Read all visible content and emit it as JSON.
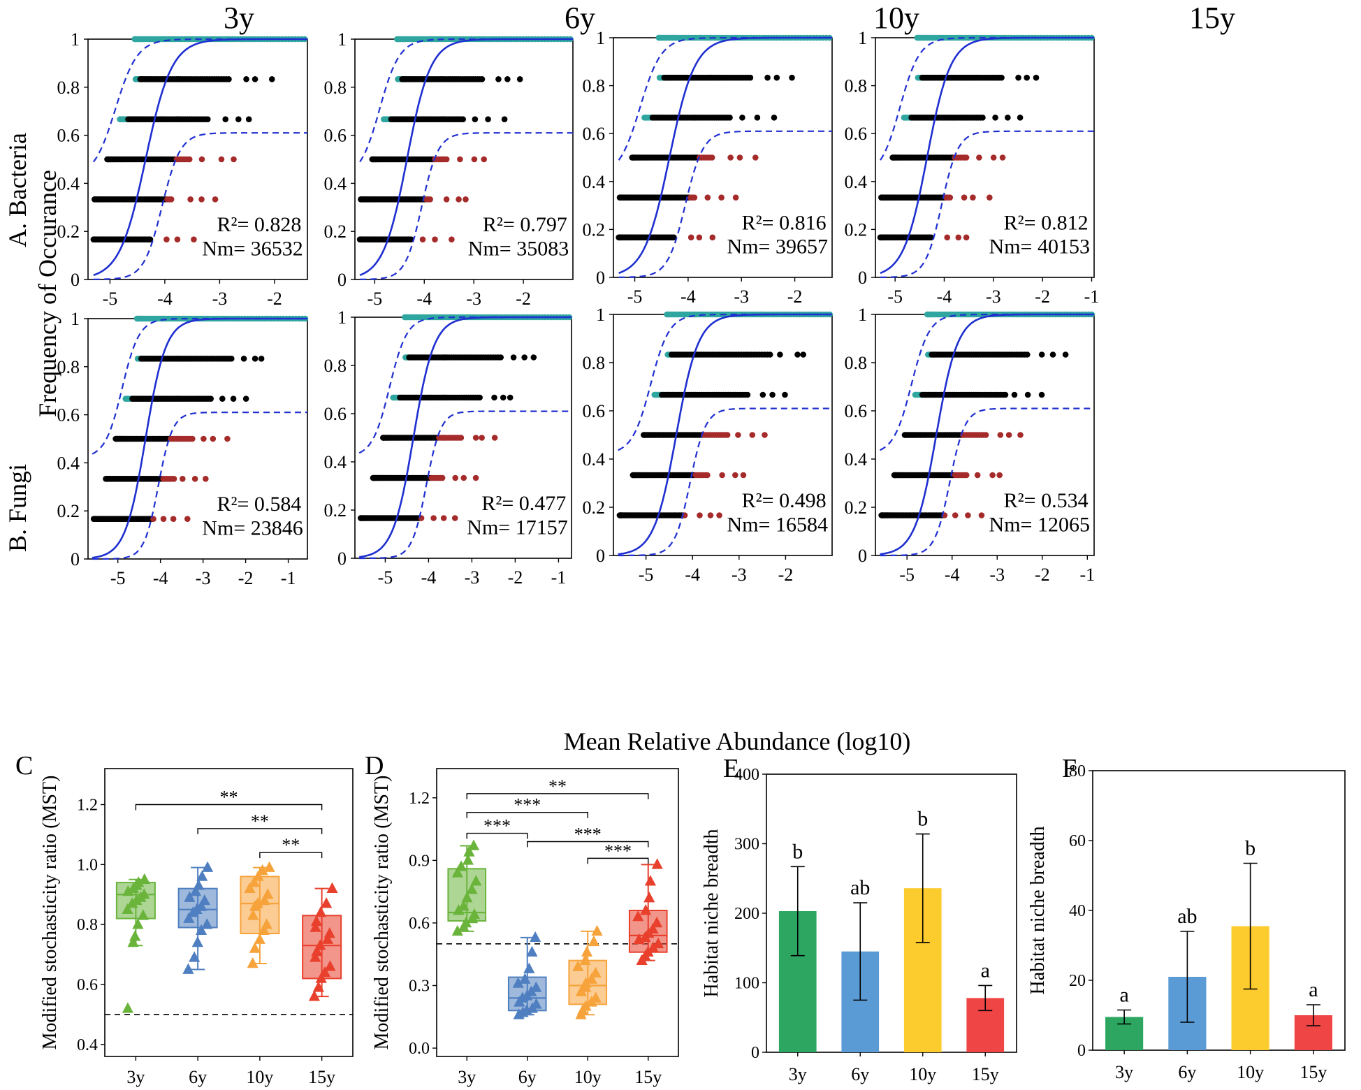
{
  "figure": {
    "col_titles": [
      "3y",
      "6y",
      "10y",
      "15y"
    ],
    "row_labels": [
      "A. Bacteria",
      "B. Fungi"
    ],
    "y_label": "Frequency of Occurance",
    "x_label": "Mean Relative Abundance (log10)"
  },
  "chart_data": [
    {
      "type": "scatter",
      "panel": "A-3y",
      "title": "3y",
      "r2_label": "R²= 0.828",
      "nm_label": "Nm= 36532",
      "r2": 0.828,
      "nm": 36532,
      "xlim": [
        -5.4,
        -1.4
      ],
      "xticks": [
        -5,
        -4,
        -3,
        -2
      ],
      "ylim": [
        0,
        1
      ],
      "yticks": [
        0,
        0.2,
        0.4,
        0.6,
        0.8,
        1
      ]
    },
    {
      "type": "scatter",
      "panel": "A-6y",
      "title": "6y",
      "r2_label": "R²= 0.797",
      "nm_label": "Nm= 35083",
      "r2": 0.797,
      "nm": 35083,
      "xlim": [
        -5.4,
        -1.0
      ],
      "xticks": [
        -5,
        -4,
        -3,
        -2
      ],
      "ylim": [
        0,
        1
      ],
      "yticks": [
        0,
        0.2,
        0.4,
        0.6,
        0.8,
        1
      ]
    },
    {
      "type": "scatter",
      "panel": "A-10y",
      "title": "10y",
      "r2_label": "R²= 0.816",
      "nm_label": "Nm= 39657",
      "r2": 0.816,
      "nm": 39657,
      "xlim": [
        -5.4,
        -1.3
      ],
      "xticks": [
        -5,
        -4,
        -3,
        -2
      ],
      "ylim": [
        0,
        1
      ],
      "yticks": [
        0,
        0.2,
        0.4,
        0.6,
        0.8,
        1
      ]
    },
    {
      "type": "scatter",
      "panel": "A-15y",
      "title": "15y",
      "r2_label": "R²= 0.812",
      "nm_label": "Nm= 40153",
      "r2": 0.812,
      "nm": 40153,
      "xlim": [
        -5.4,
        -0.95
      ],
      "xticks": [
        -5,
        -4,
        -3,
        -2,
        -1
      ],
      "ylim": [
        0,
        1
      ],
      "yticks": [
        0,
        0.2,
        0.4,
        0.6,
        0.8,
        1
      ]
    },
    {
      "type": "scatter",
      "panel": "B-3y",
      "title": "3y",
      "r2_label": "R²= 0.584",
      "nm_label": "Nm= 23846",
      "r2": 0.584,
      "nm": 23846,
      "xlim": [
        -5.7,
        -0.55
      ],
      "xticks": [
        -5,
        -4,
        -3,
        -2,
        -1
      ],
      "ylim": [
        0,
        1
      ],
      "yticks": [
        0,
        0.2,
        0.4,
        0.6,
        0.8,
        1
      ]
    },
    {
      "type": "scatter",
      "panel": "B-6y",
      "title": "6y",
      "r2_label": "R²= 0.477",
      "nm_label": "Nm= 17157",
      "r2": 0.477,
      "nm": 17157,
      "xlim": [
        -5.7,
        -0.7
      ],
      "xticks": [
        -5,
        -4,
        -3,
        -2,
        -1
      ],
      "ylim": [
        0,
        1
      ],
      "yticks": [
        0,
        0.2,
        0.4,
        0.6,
        0.8,
        1
      ]
    },
    {
      "type": "scatter",
      "panel": "B-10y",
      "title": "10y",
      "r2_label": "R²= 0.498",
      "nm_label": "Nm= 16584",
      "r2": 0.498,
      "nm": 16584,
      "xlim": [
        -5.7,
        -1.0
      ],
      "xticks": [
        -5,
        -4,
        -3,
        -2
      ],
      "ylim": [
        0,
        1
      ],
      "yticks": [
        0,
        0.2,
        0.4,
        0.6,
        0.8,
        1
      ]
    },
    {
      "type": "scatter",
      "panel": "B-15y",
      "title": "15y",
      "r2_label": "R²= 0.534",
      "nm_label": "Nm= 12065",
      "r2": 0.534,
      "nm": 12065,
      "xlim": [
        -5.7,
        -0.85
      ],
      "xticks": [
        -5,
        -4,
        -3,
        -2,
        -1
      ],
      "ylim": [
        0,
        1
      ],
      "yticks": [
        0,
        0.2,
        0.4,
        0.6,
        0.8,
        1
      ]
    },
    {
      "type": "box",
      "panel": "C",
      "letter": "C",
      "ylabel": "Modified stochasticity ratio (MST)",
      "categories": [
        "3y",
        "6y",
        "10y",
        "15y"
      ],
      "ylim": [
        0.36,
        1.32
      ],
      "yticks": [
        0.4,
        0.6,
        0.8,
        1.0,
        1.2
      ],
      "ytick_labels": [
        "0.4",
        "0.6",
        "0.8",
        "1.0",
        "1.2"
      ],
      "reference_line": 0.5,
      "colors": [
        "#6ab43c",
        "#4f7fc0",
        "#f7a33b",
        "#e8402d"
      ],
      "boxes": [
        {
          "min": 0.73,
          "q1": 0.82,
          "median": 0.9,
          "q3": 0.94,
          "max": 0.95,
          "points": [
            0.52,
            0.74,
            0.76,
            0.8,
            0.83,
            0.85,
            0.87,
            0.88,
            0.89,
            0.9,
            0.91,
            0.92,
            0.93,
            0.94,
            0.95
          ]
        },
        {
          "min": 0.65,
          "q1": 0.79,
          "median": 0.85,
          "q3": 0.92,
          "max": 0.99,
          "points": [
            0.65,
            0.69,
            0.74,
            0.78,
            0.8,
            0.82,
            0.84,
            0.85,
            0.86,
            0.88,
            0.89,
            0.91,
            0.93,
            0.96,
            0.99
          ]
        },
        {
          "min": 0.67,
          "q1": 0.77,
          "median": 0.87,
          "q3": 0.96,
          "max": 0.99,
          "points": [
            0.67,
            0.72,
            0.75,
            0.78,
            0.8,
            0.83,
            0.86,
            0.87,
            0.88,
            0.9,
            0.92,
            0.94,
            0.96,
            0.98,
            0.99
          ]
        },
        {
          "min": 0.56,
          "q1": 0.62,
          "median": 0.73,
          "q3": 0.83,
          "max": 0.92,
          "points": [
            0.56,
            0.59,
            0.62,
            0.64,
            0.66,
            0.69,
            0.71,
            0.73,
            0.75,
            0.77,
            0.79,
            0.81,
            0.84,
            0.87,
            0.92
          ]
        }
      ],
      "brackets": [
        {
          "from": 0,
          "to": 3,
          "label": "**",
          "y": 1.2
        },
        {
          "from": 1,
          "to": 3,
          "label": "**",
          "y": 1.12
        },
        {
          "from": 2,
          "to": 3,
          "label": "**",
          "y": 1.04
        }
      ]
    },
    {
      "type": "box",
      "panel": "D",
      "letter": "D",
      "ylabel": "Modified stochasticity ratio (MST)",
      "categories": [
        "3y",
        "6y",
        "10y",
        "15y"
      ],
      "ylim": [
        -0.04,
        1.34
      ],
      "yticks": [
        0.0,
        0.3,
        0.6,
        0.9,
        1.2
      ],
      "ytick_labels": [
        "0.0",
        "0.3",
        "0.6",
        "0.9",
        "1.2"
      ],
      "reference_line": 0.5,
      "colors": [
        "#6ab43c",
        "#4f7fc0",
        "#f7a33b",
        "#e8402d"
      ],
      "boxes": [
        {
          "min": 0.56,
          "q1": 0.61,
          "median": 0.65,
          "q3": 0.86,
          "max": 0.97,
          "points": [
            0.56,
            0.58,
            0.6,
            0.62,
            0.64,
            0.66,
            0.68,
            0.72,
            0.76,
            0.8,
            0.84,
            0.87,
            0.9,
            0.94,
            0.97
          ]
        },
        {
          "min": 0.16,
          "q1": 0.18,
          "median": 0.24,
          "q3": 0.34,
          "max": 0.53,
          "points": [
            0.16,
            0.17,
            0.18,
            0.19,
            0.21,
            0.22,
            0.24,
            0.25,
            0.27,
            0.29,
            0.31,
            0.33,
            0.38,
            0.46,
            0.53
          ]
        },
        {
          "min": 0.16,
          "q1": 0.21,
          "median": 0.3,
          "q3": 0.42,
          "max": 0.56,
          "points": [
            0.16,
            0.18,
            0.2,
            0.22,
            0.24,
            0.27,
            0.29,
            0.31,
            0.33,
            0.36,
            0.39,
            0.42,
            0.46,
            0.51,
            0.56
          ]
        },
        {
          "min": 0.42,
          "q1": 0.46,
          "median": 0.54,
          "q3": 0.66,
          "max": 0.88,
          "points": [
            0.42,
            0.44,
            0.46,
            0.48,
            0.5,
            0.52,
            0.53,
            0.55,
            0.57,
            0.6,
            0.63,
            0.66,
            0.72,
            0.8,
            0.88
          ]
        }
      ],
      "brackets": [
        {
          "from": 0,
          "to": 3,
          "label": "**",
          "y": 1.22
        },
        {
          "from": 0,
          "to": 2,
          "label": "***",
          "y": 1.13
        },
        {
          "from": 0,
          "to": 1,
          "label": "***",
          "y": 1.03
        },
        {
          "from": 1,
          "to": 3,
          "label": "***",
          "y": 0.99
        },
        {
          "from": 2,
          "to": 3,
          "label": "***",
          "y": 0.91
        }
      ]
    },
    {
      "type": "bar",
      "panel": "E",
      "letter": "E",
      "ylabel": "Habitat niche breadth",
      "categories": [
        "3y",
        "6y",
        "10y",
        "15y"
      ],
      "values": [
        203,
        145,
        236,
        78
      ],
      "errors": [
        64,
        70,
        78,
        18
      ],
      "letters": [
        "b",
        "ab",
        "b",
        "a"
      ],
      "ylim": [
        0,
        400
      ],
      "yticks": [
        0,
        100,
        200,
        300,
        400
      ],
      "colors": [
        "#2ca661",
        "#5b9bd5",
        "#fccb2d",
        "#f04545"
      ]
    },
    {
      "type": "bar",
      "panel": "F",
      "letter": "F",
      "ylabel": "Habitat niche breadth",
      "categories": [
        "3y",
        "6y",
        "10y",
        "15y"
      ],
      "values": [
        9.5,
        21,
        35.5,
        10
      ],
      "errors": [
        2.0,
        13,
        18,
        3.0
      ],
      "letters": [
        "a",
        "ab",
        "b",
        "a"
      ],
      "ylim": [
        0,
        80
      ],
      "yticks": [
        0,
        20,
        40,
        60,
        80
      ],
      "colors": [
        "#2ca661",
        "#5b9bd5",
        "#fccb2d",
        "#f04545"
      ]
    }
  ]
}
